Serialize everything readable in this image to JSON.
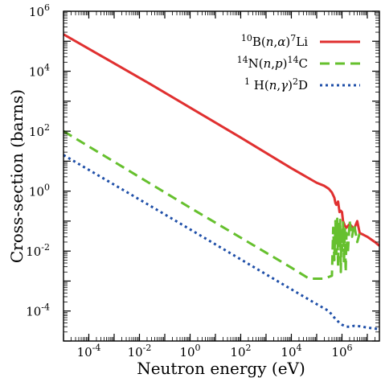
{
  "chart_data": {
    "type": "line",
    "xscale": "log",
    "yscale": "log",
    "xlabel": "Neutron energy (eV)",
    "ylabel": "Cross-section (barns)",
    "xlim": [
      1e-05,
      30000000.0
    ],
    "ylim": [
      1e-05,
      1000000.0
    ],
    "x_ticks": [
      {
        "value": 0.0001,
        "base": "10",
        "exp": "-4"
      },
      {
        "value": 0.01,
        "base": "10",
        "exp": "-2"
      },
      {
        "value": 1.0,
        "base": "10",
        "exp": "0"
      },
      {
        "value": 100.0,
        "base": "10",
        "exp": "2"
      },
      {
        "value": 10000.0,
        "base": "10",
        "exp": "4"
      },
      {
        "value": 1000000.0,
        "base": "10",
        "exp": "6"
      }
    ],
    "y_ticks": [
      {
        "value": 0.0001,
        "base": "10",
        "exp": "-4"
      },
      {
        "value": 0.01,
        "base": "10",
        "exp": "-2"
      },
      {
        "value": 1.0,
        "base": "10",
        "exp": "0"
      },
      {
        "value": 100.0,
        "base": "10",
        "exp": "2"
      },
      {
        "value": 10000.0,
        "base": "10",
        "exp": "4"
      },
      {
        "value": 1000000.0,
        "base": "10",
        "exp": "6"
      }
    ],
    "legend_position": "top-right",
    "series": [
      {
        "label_parts": [
          {
            "t": "10",
            "sup": true
          },
          {
            "t": "B("
          },
          {
            "t": "n",
            "it": true
          },
          {
            "t": ","
          },
          {
            "t": "α",
            "it": true
          },
          {
            "t": ")"
          },
          {
            "t": "7",
            "sup": true
          },
          {
            "t": "Li"
          }
        ],
        "color": "#e03030",
        "dash": "solid",
        "points": [
          [
            1e-05,
            170000
          ],
          [
            0.0253,
            3840
          ],
          [
            1,
            611
          ],
          [
            100,
            61
          ],
          [
            10000,
            5.8
          ],
          [
            100000,
            1.9
          ],
          [
            200000,
            1.5
          ],
          [
            300000,
            1.2
          ],
          [
            400000,
            0.9
          ],
          [
            500000,
            0.6
          ],
          [
            550000,
            0.4
          ],
          [
            600000,
            0.35
          ],
          [
            700000,
            0.45
          ],
          [
            800000,
            0.2
          ],
          [
            900000,
            0.22
          ],
          [
            1000000,
            0.2
          ],
          [
            1100000,
            0.1
          ],
          [
            1300000,
            0.07
          ],
          [
            1500000,
            0.06
          ],
          [
            2000000,
            0.08
          ],
          [
            3000000,
            0.055
          ],
          [
            4000000,
            0.1
          ],
          [
            5000000,
            0.04
          ],
          [
            7000000,
            0.035
          ],
          [
            10000000,
            0.03
          ],
          [
            20000000,
            0.02
          ],
          [
            30000000,
            0.015
          ]
        ]
      },
      {
        "label_parts": [
          {
            "t": "14",
            "sup": true
          },
          {
            "t": "N("
          },
          {
            "t": "n",
            "it": true
          },
          {
            "t": ","
          },
          {
            "t": "p",
            "it": true
          },
          {
            "t": ")"
          },
          {
            "t": "14",
            "sup": true
          },
          {
            "t": "C"
          }
        ],
        "color": "#66c02e",
        "dash": "12,7",
        "points": [
          [
            1e-05,
            100
          ],
          [
            0.0253,
            1.83
          ],
          [
            1,
            0.28
          ],
          [
            100,
            0.028
          ],
          [
            10000,
            0.0028
          ],
          [
            50000,
            0.0012
          ],
          [
            200000,
            0.0012
          ],
          [
            400000,
            0.0015
          ],
          [
            450000,
            0.06
          ],
          [
            500000,
            0.005
          ],
          [
            550000,
            0.1
          ],
          [
            600000,
            0.008
          ],
          [
            650000,
            0.12
          ],
          [
            700000,
            0.003
          ],
          [
            750000,
            0.08
          ],
          [
            800000,
            0.015
          ],
          [
            850000,
            0.11
          ],
          [
            900000,
            0.002
          ],
          [
            950000,
            0.05
          ],
          [
            1000000,
            0.01
          ],
          [
            1100000,
            0.09
          ],
          [
            1200000,
            0.004
          ],
          [
            1300000,
            0.06
          ],
          [
            1400000,
            0.002
          ],
          [
            1500000,
            0.04
          ],
          [
            1700000,
            0.008
          ],
          [
            2000000,
            0.1
          ],
          [
            2500000,
            0.03
          ],
          [
            3000000,
            0.08
          ],
          [
            4000000,
            0.02
          ],
          [
            5000000,
            0.04
          ]
        ]
      },
      {
        "label_parts": [
          {
            "t": "1",
            "sup": true
          },
          {
            "t": " H("
          },
          {
            "t": "n",
            "it": true
          },
          {
            "t": ","
          },
          {
            "t": "γ",
            "it": true
          },
          {
            "t": ")"
          },
          {
            "t": "2",
            "sup": true
          },
          {
            "t": "D"
          }
        ],
        "color": "#1f4fa8",
        "dash": "3,4",
        "points": [
          [
            1e-05,
            16
          ],
          [
            0.0253,
            0.332
          ],
          [
            1,
            0.053
          ],
          [
            100,
            0.0053
          ],
          [
            10000,
            0.00053
          ],
          [
            100000,
            0.00017
          ],
          [
            300000,
            0.0001
          ],
          [
            500000,
            6e-05
          ],
          [
            800000,
            4e-05
          ],
          [
            1000000,
            3.5e-05
          ],
          [
            1500000,
            3e-05
          ],
          [
            2000000,
            3e-05
          ],
          [
            3000000,
            3.2e-05
          ],
          [
            5000000,
            3.1e-05
          ],
          [
            10000000,
            2.8e-05
          ],
          [
            20000000,
            2.6e-05
          ],
          [
            30000000,
            2.4e-05
          ]
        ]
      }
    ]
  }
}
